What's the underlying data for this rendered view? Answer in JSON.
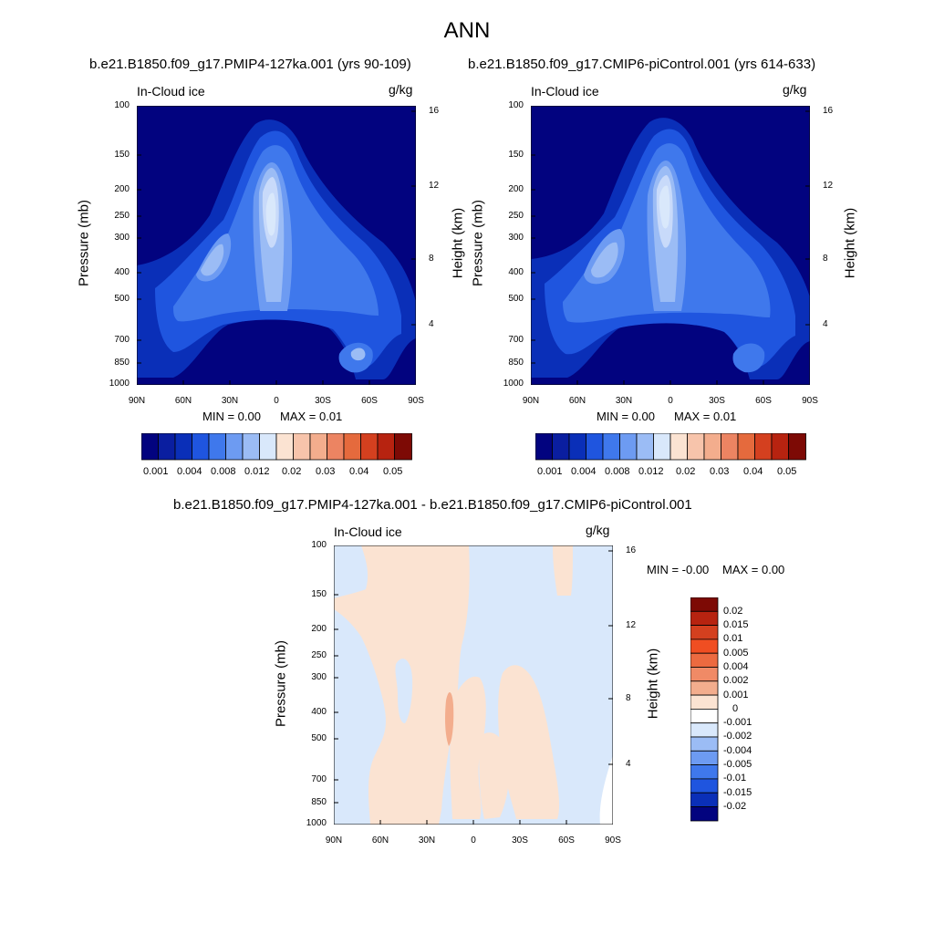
{
  "title": "ANN",
  "colors": {
    "deep_blue": "#02037f",
    "blue1": "#0a2fb8",
    "blue2": "#1f55df",
    "blue3": "#3f78ec",
    "blue4": "#6d9bf2",
    "blue5": "#9bbcf5",
    "blue6": "#c8dafa",
    "light_blue": "#d9e8fb",
    "peach": "#fbe3d2",
    "salmon": "#f3ad8d",
    "orange": "#e56a3d",
    "red": "#b72310",
    "dark_red": "#7d0a05"
  },
  "chart_data": [
    {
      "type": "heatmap",
      "title": "b.e21.B1850.f09_g17.PMIP4-127ka.001 (yrs 90-109)",
      "panel_label": "In-Cloud ice",
      "units": "g/kg",
      "xlabel": "",
      "ylabel": "Pressure (mb)",
      "y2label": "Height (km)",
      "x_ticks": [
        "90N",
        "60N",
        "30N",
        "0",
        "30S",
        "60S",
        "90S"
      ],
      "y_ticks": [
        "100",
        "150",
        "200",
        "250",
        "300",
        "400",
        "500",
        "700",
        "850",
        "1000"
      ],
      "y2_ticks": [
        "16",
        "12",
        "8",
        "4"
      ],
      "min_label": "MIN =   0.00",
      "max_label": "MAX =   0.01",
      "colorbar_labels": [
        "0.001",
        "0.004",
        "0.008",
        "0.012",
        "0.02",
        "0.03",
        "0.04",
        "0.05"
      ]
    },
    {
      "type": "heatmap",
      "title": "b.e21.B1850.f09_g17.CMIP6-piControl.001 (yrs 614-633)",
      "panel_label": "In-Cloud ice",
      "units": "g/kg",
      "xlabel": "",
      "ylabel": "Pressure (mb)",
      "y2label": "Height (km)",
      "x_ticks": [
        "90N",
        "60N",
        "30N",
        "0",
        "30S",
        "60S",
        "90S"
      ],
      "y_ticks": [
        "100",
        "150",
        "200",
        "250",
        "300",
        "400",
        "500",
        "700",
        "850",
        "1000"
      ],
      "y2_ticks": [
        "16",
        "12",
        "8",
        "4"
      ],
      "min_label": "MIN =   0.00",
      "max_label": "MAX =   0.01",
      "colorbar_labels": [
        "0.001",
        "0.004",
        "0.008",
        "0.012",
        "0.02",
        "0.03",
        "0.04",
        "0.05"
      ]
    },
    {
      "type": "heatmap",
      "title": "b.e21.B1850.f09_g17.PMIP4-127ka.001 - b.e21.B1850.f09_g17.CMIP6-piControl.001",
      "panel_label": "In-Cloud ice",
      "units": "g/kg",
      "xlabel": "",
      "ylabel": "Pressure (mb)",
      "y2label": "Height (km)",
      "x_ticks": [
        "90N",
        "60N",
        "30N",
        "0",
        "30S",
        "60S",
        "90S"
      ],
      "y_ticks": [
        "100",
        "150",
        "200",
        "250",
        "300",
        "400",
        "500",
        "700",
        "850",
        "1000"
      ],
      "y2_ticks": [
        "16",
        "12",
        "8",
        "4"
      ],
      "min_label": "MIN =  -0.00",
      "max_label": "MAX =    0.00",
      "colorbar_labels": [
        "0.02",
        "0.015",
        "0.01",
        "0.005",
        "0.004",
        "0.002",
        "0.001",
        "0",
        "-0.001",
        "-0.002",
        "-0.004",
        "-0.005",
        "-0.01",
        "-0.015",
        "-0.02"
      ]
    }
  ]
}
